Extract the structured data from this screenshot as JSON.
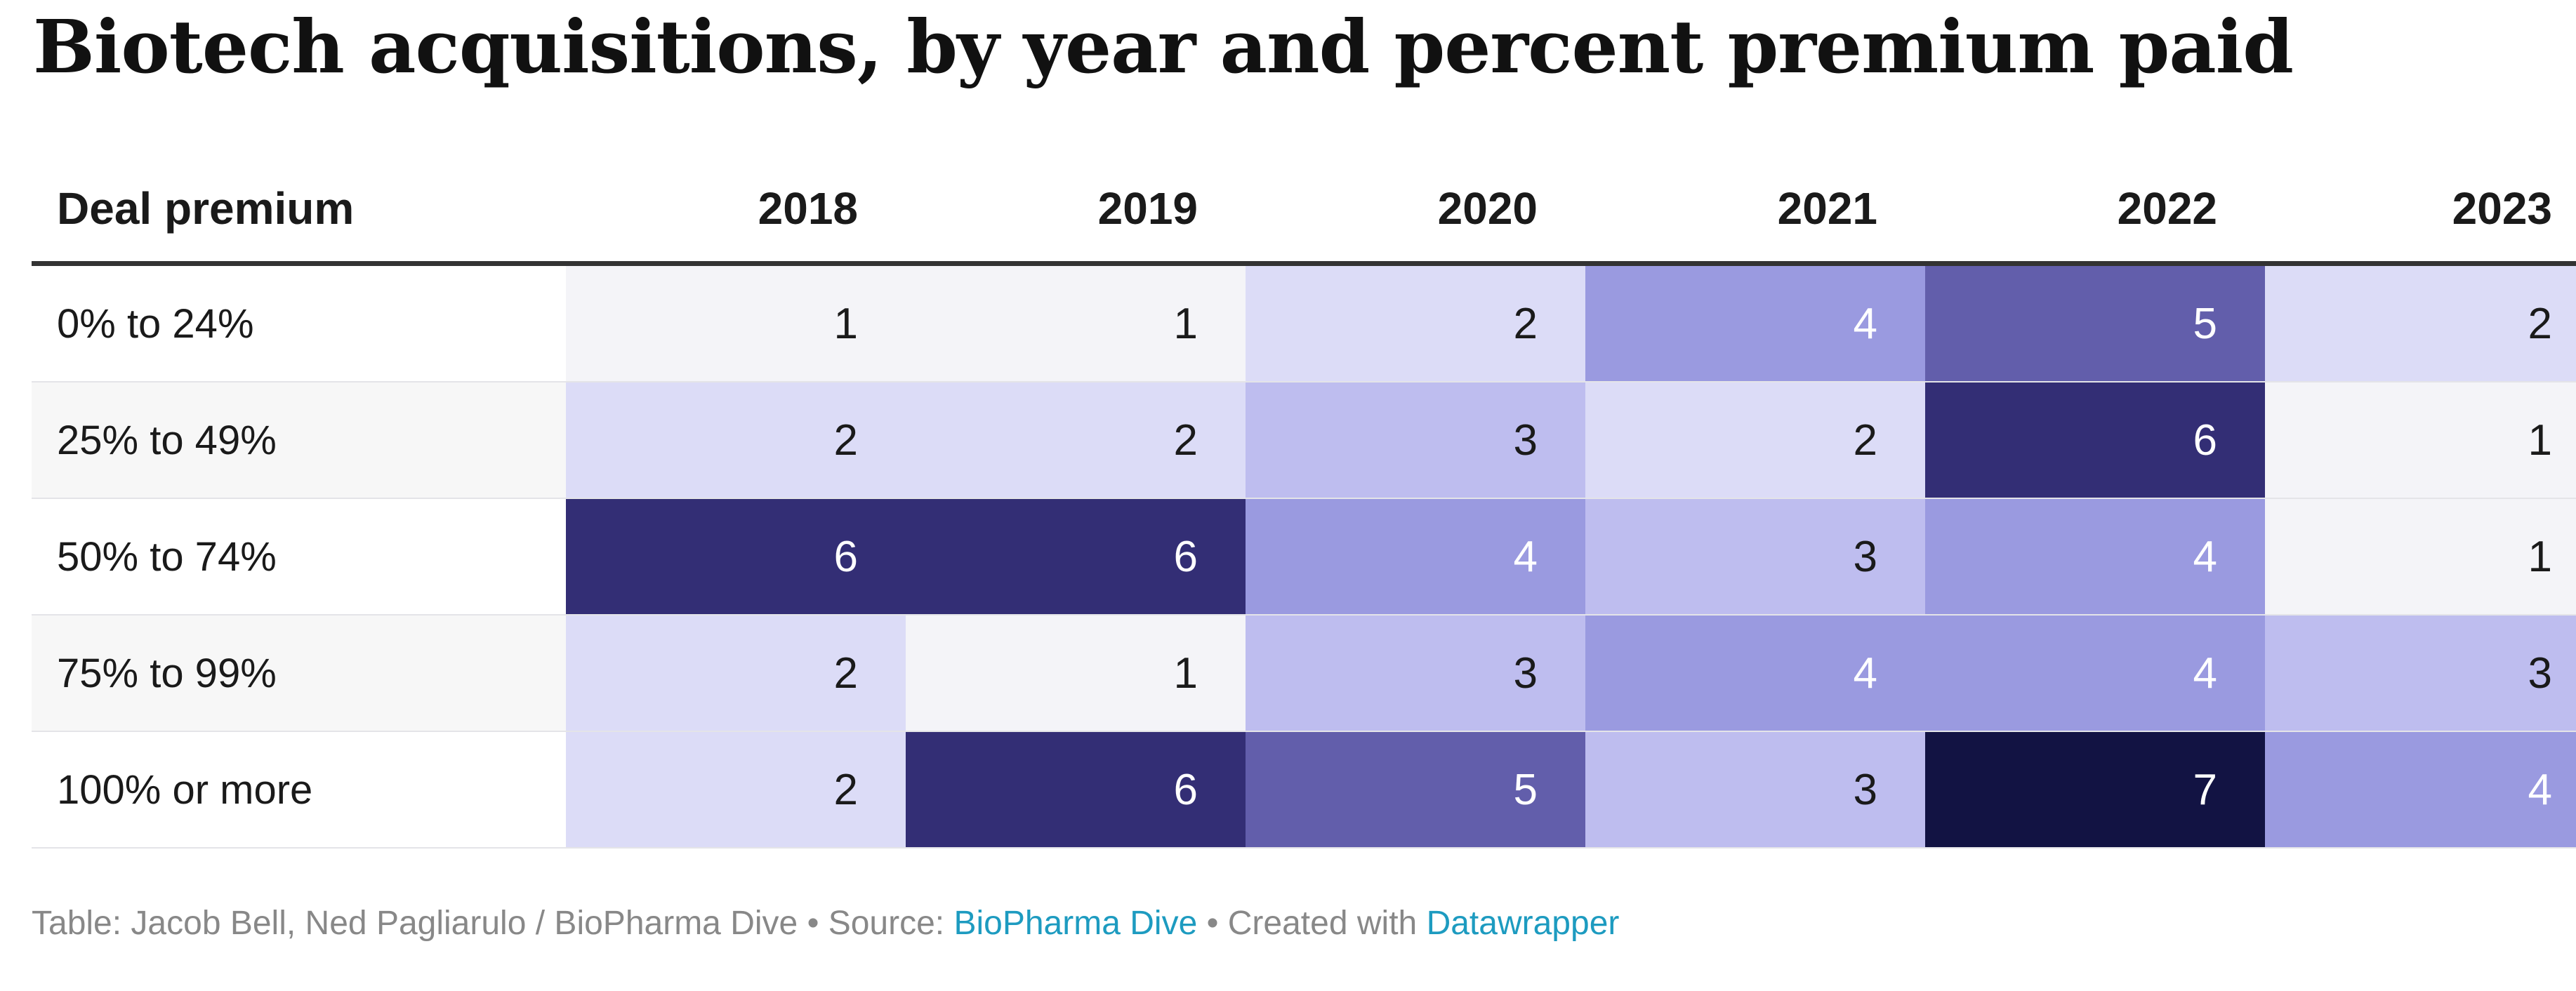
{
  "title": "Biotech acquisitions, by year and percent premium paid",
  "footer": {
    "prefix": "Table: Jacob Bell, Ned Pagliarulo / BioPharma Dive • Source: ",
    "source_link": "BioPharma Dive",
    "middle": " • Created with ",
    "tool_link": "Datawrapper"
  },
  "chart_data": {
    "type": "heatmap",
    "row_header": "Deal premium",
    "columns": [
      "2018",
      "2019",
      "2020",
      "2021",
      "2022",
      "2023"
    ],
    "rows": [
      {
        "label": "0% to 24%",
        "values": [
          1,
          1,
          2,
          4,
          5,
          2
        ]
      },
      {
        "label": "25% to 49%",
        "values": [
          2,
          2,
          3,
          2,
          6,
          1
        ]
      },
      {
        "label": "50% to 74%",
        "values": [
          6,
          6,
          4,
          3,
          4,
          1
        ]
      },
      {
        "label": "75% to 99%",
        "values": [
          2,
          1,
          3,
          4,
          4,
          3
        ]
      },
      {
        "label": "100% or more",
        "values": [
          2,
          6,
          5,
          3,
          7,
          4
        ]
      }
    ],
    "color_scale": {
      "1": "#f4f4f8",
      "2": "#dcdcf7",
      "3": "#bebdef",
      "4": "#9a9ae0",
      "5": "#625eab",
      "6": "#332e75",
      "7": "#121343"
    },
    "light_text_color": "#ffffff",
    "dark_text_color": "#1a1a1a"
  }
}
